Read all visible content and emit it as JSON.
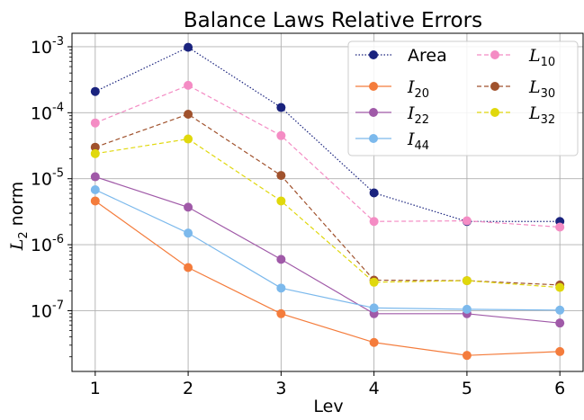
{
  "chart_data": {
    "type": "line",
    "title": "Balance Laws Relative Errors",
    "xlabel": "Lev",
    "ylabel": {
      "main": "L",
      "sub": "2",
      "suffix": " norm"
    },
    "yscale": "log",
    "ylim": [
      1.2e-08,
      0.0016
    ],
    "xlim": [
      0.75,
      6.25
    ],
    "x": [
      1,
      2,
      3,
      4,
      5,
      6
    ],
    "xticks": [
      "1",
      "2",
      "3",
      "4",
      "5",
      "6"
    ],
    "yticks": [
      {
        "value": 1e-07,
        "base": "10",
        "exp": "-7"
      },
      {
        "value": 1e-06,
        "base": "10",
        "exp": "-6"
      },
      {
        "value": 1e-05,
        "base": "10",
        "exp": "-5"
      },
      {
        "value": 0.0001,
        "base": "10",
        "exp": "-4"
      },
      {
        "value": 0.001,
        "base": "10",
        "exp": "-3"
      }
    ],
    "grid": true,
    "legend_position": "top-right",
    "series": [
      {
        "name": "Area",
        "name_main": "Area",
        "name_sub": "",
        "color": "#1a237e",
        "dash": "dotted",
        "values": [
          0.00021,
          0.00098,
          0.00012,
          6.1e-06,
          2.25e-06,
          2.25e-06
        ]
      },
      {
        "name": "I20",
        "name_main": "I",
        "name_sub": "20",
        "color": "#f47c3c",
        "dash": "solid",
        "values": [
          4.6e-06,
          4.5e-07,
          9e-08,
          3.3e-08,
          2.1e-08,
          2.4e-08
        ]
      },
      {
        "name": "I22",
        "name_main": "I",
        "name_sub": "22",
        "color": "#a05aa8",
        "dash": "solid",
        "values": [
          1.07e-05,
          3.7e-06,
          6e-07,
          9e-08,
          9e-08,
          6.5e-08
        ]
      },
      {
        "name": "I44",
        "name_main": "I",
        "name_sub": "44",
        "color": "#7cb9ec",
        "dash": "solid",
        "values": [
          6.8e-06,
          1.5e-06,
          2.2e-07,
          1.1e-07,
          1.05e-07,
          1.02e-07
        ]
      },
      {
        "name": "L10",
        "name_main": "L",
        "name_sub": "10",
        "color": "#f48cc4",
        "dash": "dashed",
        "values": [
          7e-05,
          0.00026,
          4.5e-05,
          2.25e-06,
          2.3e-06,
          1.85e-06
        ]
      },
      {
        "name": "L30",
        "name_main": "L",
        "name_sub": "30",
        "color": "#a0522d",
        "dash": "dashed",
        "values": [
          3e-05,
          9.5e-05,
          1.12e-05,
          2.9e-07,
          2.85e-07,
          2.45e-07
        ]
      },
      {
        "name": "L32",
        "name_main": "L",
        "name_sub": "32",
        "color": "#e0d80c",
        "dash": "dashed",
        "values": [
          2.4e-05,
          4e-05,
          4.6e-06,
          2.7e-07,
          2.85e-07,
          2.25e-07
        ]
      }
    ]
  }
}
